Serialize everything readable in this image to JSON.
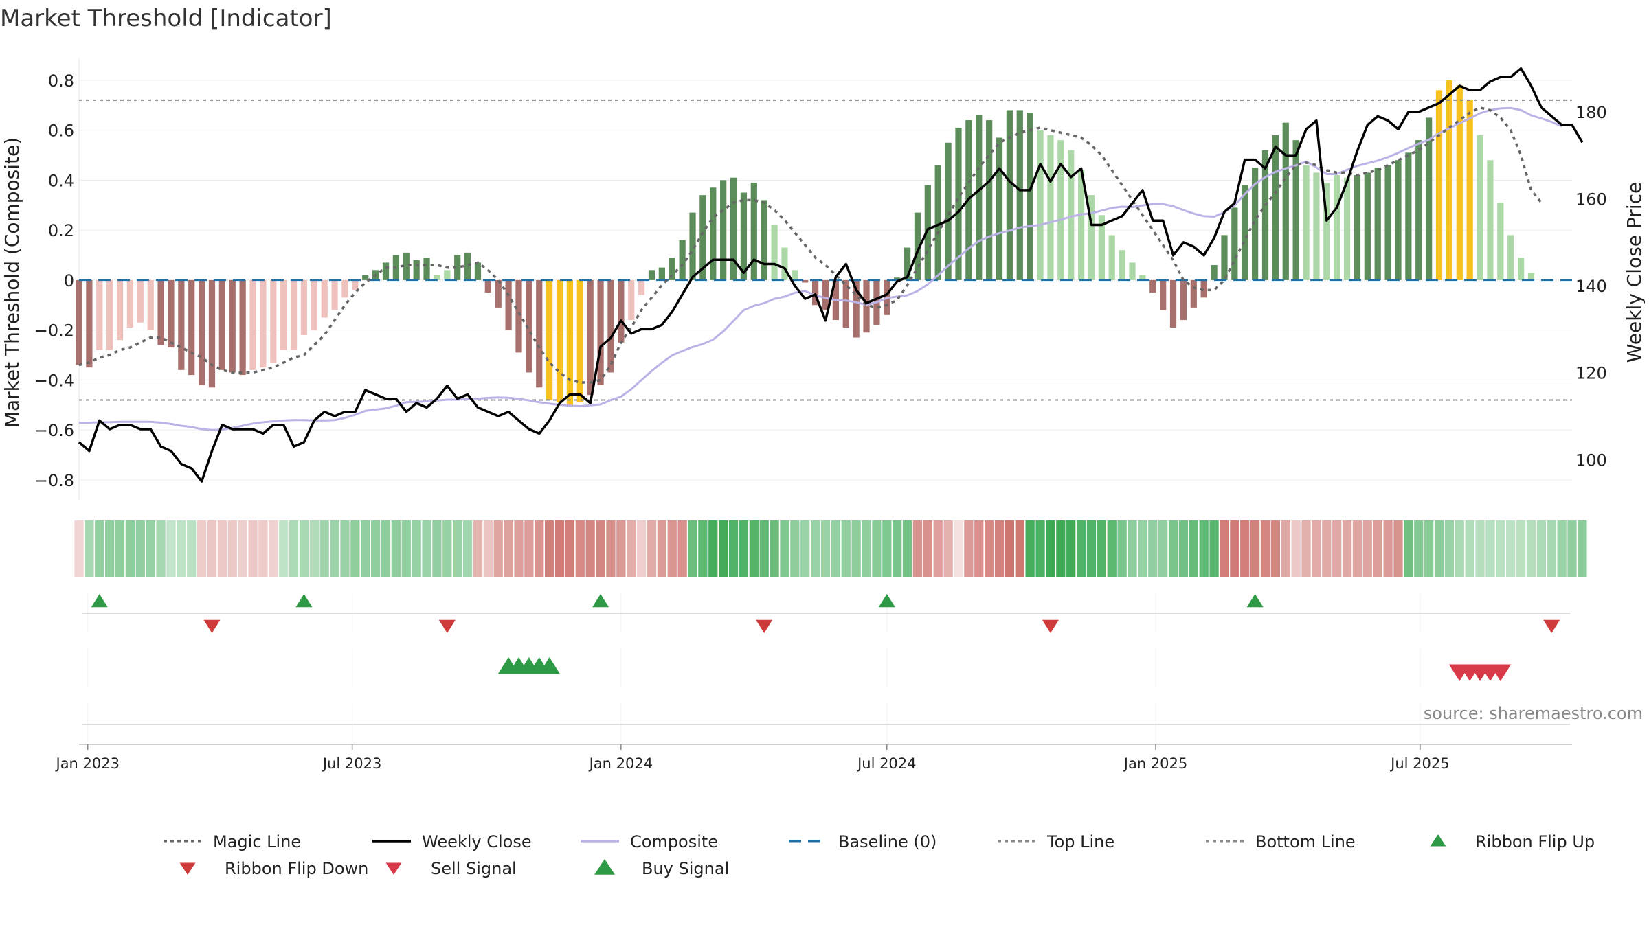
{
  "chart_data": {
    "type": "bar",
    "title": "Market Threshold [Indicator]",
    "ylabel_left": "Market Threshold (Composite)",
    "ylabel_right": "Weekly Close Price",
    "source": "source: sharemaestro.com",
    "y_left": {
      "range": [
        -0.88,
        0.86
      ],
      "ticks": [
        0.8,
        0.6,
        0.4,
        0.2,
        0,
        -0.2,
        -0.4,
        -0.6,
        -0.8
      ],
      "tick_labels": [
        "0.8",
        "0.6",
        "0.4",
        "0.2",
        "0",
        "−0.2",
        "−0.4",
        "−0.6",
        "−0.8"
      ]
    },
    "y_right": {
      "range": [
        90.73,
        190.74
      ],
      "ticks": [
        180,
        160,
        140,
        120,
        100
      ],
      "tick_labels": [
        "180",
        "160",
        "140",
        "120",
        "100"
      ]
    },
    "x_axis": {
      "start": "2022-12-26",
      "end": "2025-10-13",
      "ticks": [
        {
          "date": "2023-01-01",
          "label": "Jan 2023"
        },
        {
          "date": "2023-07-01",
          "label": "Jul 2023"
        },
        {
          "date": "2024-01-01",
          "label": "Jan 2024"
        },
        {
          "date": "2024-07-01",
          "label": "Jul 2024"
        },
        {
          "date": "2025-01-01",
          "label": "Jan 2025"
        },
        {
          "date": "2025-07-01",
          "label": "Jul 2025"
        }
      ]
    },
    "first_week": "2022-12-26",
    "threshold_lines": {
      "top": 0.72,
      "bottom": -0.48,
      "baseline": 0
    },
    "bar_colors": {
      "strong_pos": "#5b8c5a",
      "weak_pos": "#acd8a7",
      "strong_neg": "#a8706c",
      "weak_neg": "#efc1bd",
      "extreme": "#f7c21f"
    },
    "composite_bars": [
      -0.34,
      -0.35,
      -0.28,
      -0.28,
      -0.24,
      -0.19,
      -0.17,
      -0.2,
      -0.26,
      -0.27,
      -0.36,
      -0.38,
      -0.42,
      -0.43,
      -0.36,
      -0.37,
      -0.38,
      -0.36,
      -0.35,
      -0.33,
      -0.28,
      -0.28,
      -0.22,
      -0.2,
      -0.15,
      -0.12,
      -0.07,
      -0.04,
      0.02,
      0.04,
      0.07,
      0.1,
      0.11,
      0.08,
      0.09,
      0.02,
      0.04,
      0.1,
      0.11,
      0.07,
      -0.05,
      -0.11,
      -0.2,
      -0.29,
      -0.37,
      -0.43,
      -0.48,
      -0.49,
      -0.5,
      -0.49,
      -0.46,
      -0.42,
      -0.37,
      -0.25,
      -0.16,
      -0.06,
      0.04,
      0.05,
      0.09,
      0.16,
      0.27,
      0.34,
      0.37,
      0.4,
      0.41,
      0.35,
      0.39,
      0.32,
      0.22,
      0.13,
      0.04,
      -0.01,
      -0.1,
      -0.12,
      -0.16,
      -0.19,
      -0.23,
      -0.21,
      -0.18,
      -0.14,
      0.01,
      0.13,
      0.27,
      0.38,
      0.46,
      0.55,
      0.61,
      0.64,
      0.66,
      0.64,
      0.57,
      0.68,
      0.68,
      0.67,
      0.6,
      0.58,
      0.56,
      0.52,
      0.44,
      0.34,
      0.26,
      0.18,
      0.12,
      0.07,
      0.02,
      -0.05,
      -0.12,
      -0.19,
      -0.16,
      -0.11,
      -0.07,
      0.06,
      0.18,
      0.29,
      0.38,
      0.45,
      0.52,
      0.58,
      0.63,
      0.56,
      0.46,
      0.43,
      0.39,
      0.42,
      0.41,
      0.42,
      0.43,
      0.45,
      0.46,
      0.48,
      0.51,
      0.56,
      0.65,
      0.76,
      0.8,
      0.78,
      0.72,
      0.58,
      0.48,
      0.31,
      0.18,
      0.09,
      0.03
    ],
    "weekly_close": [
      104,
      102,
      109,
      107,
      108,
      108,
      107,
      107,
      103,
      102,
      99,
      98,
      95,
      102,
      108,
      107,
      107,
      107,
      106,
      108,
      108,
      103,
      104,
      109,
      111,
      110,
      111,
      111,
      116,
      115,
      114,
      114,
      111,
      113,
      112,
      114,
      117,
      114,
      115,
      112,
      111,
      110,
      111,
      109,
      107,
      106,
      109,
      113,
      115,
      115,
      113,
      126,
      128,
      132,
      129,
      130,
      130,
      131,
      134,
      138,
      142,
      144,
      146,
      146,
      146,
      143,
      146,
      145,
      145,
      144,
      140,
      137,
      138,
      132,
      142,
      145,
      139,
      136,
      137,
      138,
      141,
      142,
      148,
      153,
      154,
      155,
      157,
      160,
      162,
      164,
      167,
      164,
      162,
      162,
      168,
      164,
      168,
      165,
      167,
      154,
      154,
      155,
      156,
      159,
      162,
      155,
      155,
      147,
      150,
      149,
      147,
      151,
      157,
      159,
      169,
      169,
      167,
      172,
      170,
      170,
      176,
      178,
      155,
      158,
      164,
      171,
      177,
      179,
      178,
      176,
      180,
      180,
      181,
      182,
      184,
      186,
      185,
      185,
      187,
      188,
      188,
      190,
      186,
      181,
      179,
      177,
      177,
      173
    ],
    "magic_line": [
      -0.34,
      -0.33,
      -0.31,
      -0.3,
      -0.28,
      -0.27,
      -0.25,
      -0.23,
      -0.23,
      -0.25,
      -0.27,
      -0.29,
      -0.31,
      -0.34,
      -0.36,
      -0.37,
      -0.37,
      -0.37,
      -0.36,
      -0.35,
      -0.33,
      -0.31,
      -0.3,
      -0.26,
      -0.22,
      -0.16,
      -0.1,
      -0.05,
      -0.01,
      0.02,
      0.05,
      0.05,
      0.06,
      0.06,
      0.06,
      0.06,
      0.05,
      0.05,
      0.06,
      0.07,
      0.04,
      0.0,
      -0.06,
      -0.13,
      -0.2,
      -0.27,
      -0.33,
      -0.37,
      -0.4,
      -0.41,
      -0.41,
      -0.4,
      -0.34,
      -0.25,
      -0.19,
      -0.12,
      -0.07,
      -0.02,
      0.02,
      0.06,
      0.12,
      0.19,
      0.25,
      0.28,
      0.31,
      0.32,
      0.32,
      0.31,
      0.28,
      0.24,
      0.19,
      0.14,
      0.09,
      0.06,
      0.02,
      -0.02,
      -0.06,
      -0.1,
      -0.11,
      -0.1,
      -0.08,
      -0.02,
      0.05,
      0.12,
      0.19,
      0.26,
      0.33,
      0.39,
      0.45,
      0.5,
      0.55,
      0.57,
      0.59,
      0.6,
      0.61,
      0.6,
      0.59,
      0.58,
      0.57,
      0.54,
      0.5,
      0.44,
      0.38,
      0.32,
      0.26,
      0.2,
      0.14,
      0.08,
      -0.0,
      -0.03,
      -0.04,
      -0.04,
      0.0,
      0.08,
      0.16,
      0.24,
      0.3,
      0.35,
      0.41,
      0.46,
      0.47,
      0.46,
      0.44,
      0.43,
      0.43,
      0.42,
      0.43,
      0.44,
      0.46,
      0.48,
      0.5,
      0.52,
      0.55,
      0.58,
      0.61,
      0.64,
      0.67,
      0.69,
      0.68,
      0.65,
      0.6,
      0.5,
      0.36,
      0.31
    ],
    "composite_line": [
      108.5,
      108.5,
      108.6,
      108.6,
      108.7,
      108.7,
      108.7,
      108.7,
      108.5,
      108.2,
      107.8,
      107.5,
      107.0,
      106.8,
      106.9,
      107.3,
      107.8,
      108.3,
      108.6,
      108.8,
      109.0,
      109.1,
      109.1,
      109.0,
      109.0,
      109.1,
      109.6,
      110.3,
      111.2,
      111.5,
      111.8,
      112.4,
      113.2,
      113.3,
      113.4,
      113.6,
      113.8,
      113.8,
      113.9,
      114.0,
      114.2,
      114.3,
      114.2,
      114.0,
      113.6,
      113.2,
      112.9,
      112.6,
      112.4,
      112.3,
      112.5,
      112.7,
      113.7,
      114.5,
      116.2,
      118.3,
      120.4,
      122.3,
      124.0,
      125.0,
      125.9,
      126.6,
      127.6,
      129.5,
      131.9,
      134.4,
      135.4,
      136.0,
      137.0,
      137.5,
      138.4,
      138.8,
      137.8,
      137.2,
      136.7,
      136.6,
      136.2,
      135.6,
      136.2,
      137.2,
      137.5,
      137.8,
      138.8,
      140.3,
      142.4,
      144.6,
      146.6,
      148.6,
      150.3,
      151.3,
      152.1,
      152.7,
      153.4,
      153.7,
      154.0,
      154.6,
      155.2,
      155.9,
      156.4,
      156.7,
      157.3,
      157.9,
      158.2,
      158.1,
      158.5,
      158.8,
      158.8,
      158.3,
      157.4,
      156.6,
      156.0,
      155.9,
      156.9,
      158.5,
      161.1,
      163.4,
      165.0,
      166.2,
      167.0,
      167.7,
      168.6,
      167.2,
      165.7,
      165.7,
      166.7,
      167.6,
      168.2,
      168.8,
      169.6,
      170.6,
      171.7,
      172.7,
      173.6,
      175.1,
      176.2,
      177.4,
      178.5,
      179.7,
      180.4,
      180.8,
      180.9,
      180.4,
      179.2,
      178.5,
      177.7,
      176.7
    ]
  },
  "ribbon": {
    "opacities": [
      0.28,
      0.45,
      0.55,
      0.56,
      0.56,
      0.57,
      0.55,
      0.54,
      0.45,
      0.3,
      0.33,
      0.34,
      0.34,
      0.38,
      0.36,
      0.36,
      0.32,
      0.36,
      0.35,
      0.3,
      0.32,
      0.42,
      0.44,
      0.4,
      0.48,
      0.5,
      0.52,
      0.56,
      0.55,
      0.56,
      0.58,
      0.56,
      0.55,
      0.54,
      0.51,
      0.55,
      0.53,
      0.52,
      0.47,
      0.5,
      0.39,
      0.6,
      0.62,
      0.64,
      0.65,
      0.72,
      0.85,
      0.88,
      0.86,
      0.78,
      0.8,
      0.8,
      0.75,
      0.68,
      0.55,
      0.32,
      0.56,
      0.66,
      0.7,
      0.74,
      0.75,
      0.82,
      0.94,
      0.95,
      0.88,
      0.88,
      0.87,
      0.8,
      0.77,
      0.64,
      0.58,
      0.51,
      0.52,
      0.52,
      0.54,
      0.55,
      0.57,
      0.56,
      0.6,
      0.64,
      0.68,
      0.71,
      0.72,
      0.74,
      0.63,
      0.52,
      0.2,
      0.67,
      0.73,
      0.78,
      0.84,
      0.92,
      0.9,
      0.93,
      0.9,
      0.98,
      0.98,
      0.97,
      0.88,
      0.88,
      0.87,
      0.82,
      0.67,
      0.58,
      0.53,
      0.55,
      0.55,
      0.67,
      0.71,
      0.77,
      0.8,
      0.84,
      0.86,
      0.88,
      0.86,
      0.83,
      0.8,
      0.8,
      0.58,
      0.36,
      0.53,
      0.56,
      0.57,
      0.58,
      0.59,
      0.6,
      0.61,
      0.65,
      0.67,
      0.72,
      0.73,
      0.62,
      0.6,
      0.59,
      0.52,
      0.43,
      0.39,
      0.38,
      0.37,
      0.36,
      0.35,
      0.36,
      0.38,
      0.42,
      0.45,
      0.52,
      0.55,
      0.58
    ],
    "signs": [
      -1,
      1,
      1,
      1,
      1,
      1,
      1,
      1,
      1,
      1,
      1,
      1,
      -1,
      -1,
      -1,
      -1,
      -1,
      -1,
      -1,
      -1,
      1,
      1,
      1,
      1,
      1,
      1,
      1,
      1,
      1,
      1,
      1,
      1,
      1,
      1,
      1,
      1,
      1,
      1,
      1,
      -1,
      -1,
      -1,
      -1,
      -1,
      -1,
      -1,
      -1,
      -1,
      -1,
      -1,
      -1,
      -1,
      -1,
      -1,
      -1,
      -1,
      -1,
      -1,
      -1,
      -1,
      1,
      1,
      1,
      1,
      1,
      1,
      1,
      1,
      1,
      1,
      1,
      1,
      1,
      1,
      1,
      1,
      1,
      1,
      1,
      1,
      1,
      1,
      -1,
      -1,
      -1,
      -1,
      -1,
      -1,
      -1,
      -1,
      -1,
      -1,
      -1,
      1,
      1,
      1,
      1,
      1,
      1,
      1,
      1,
      1,
      1,
      1,
      1,
      1,
      1,
      1,
      1,
      1,
      1,
      1,
      -1,
      -1,
      -1,
      -1,
      -1,
      -1,
      -1,
      -1,
      -1,
      -1,
      -1,
      -1,
      -1,
      -1,
      -1,
      -1,
      -1,
      -1,
      1,
      1,
      1,
      1,
      1,
      1,
      1,
      1,
      1,
      1,
      1,
      1,
      1,
      1,
      1,
      1,
      1,
      1,
      1,
      1,
      1,
      1,
      1,
      -1,
      -1,
      -1,
      -1
    ],
    "pos_color": "#39a852",
    "neg_color": "#c96963"
  },
  "signals": {
    "ribbon_flip_up": [
      "2023-01-09",
      "2023-05-29",
      "2023-12-18",
      "2024-07-01",
      "2025-03-10"
    ],
    "ribbon_flip_down": [
      "2023-03-27",
      "2023-09-04",
      "2024-04-08",
      "2024-10-21",
      "2025-09-29"
    ],
    "buy_signal": [
      "2023-10-16",
      "2023-10-23",
      "2023-10-30",
      "2023-11-06",
      "2023-11-13"
    ],
    "sell_signal": [
      "2025-07-28",
      "2025-08-04",
      "2025-08-11",
      "2025-08-18",
      "2025-08-25"
    ],
    "up_color": "#2e9a45",
    "down_color": "#cf3a3a",
    "buy_color": "#2e9a45",
    "sell_color": "#d93a4a"
  },
  "legend": [
    {
      "label": "Magic Line",
      "style": "dotted",
      "color": "#666666"
    },
    {
      "label": "Weekly Close",
      "style": "solid",
      "color": "#000000"
    },
    {
      "label": "Composite",
      "style": "solid",
      "color": "#bbb3e6"
    },
    {
      "label": "Baseline (0)",
      "style": "dashed",
      "color": "#1f6fa8"
    },
    {
      "label": "Top Line",
      "style": "dotted",
      "color": "#888888"
    },
    {
      "label": "Bottom Line",
      "style": "dotted",
      "color": "#888888"
    },
    {
      "label": "Ribbon Flip Up",
      "style": "tri-up",
      "color": "#2e9a45"
    },
    {
      "label": "Ribbon Flip Down",
      "style": "tri-down",
      "color": "#cf3a3a"
    },
    {
      "label": "Sell Signal",
      "style": "tri-down",
      "color": "#d93a4a"
    },
    {
      "label": "Buy Signal",
      "style": "tri-up",
      "color": "#2e9a45"
    }
  ]
}
